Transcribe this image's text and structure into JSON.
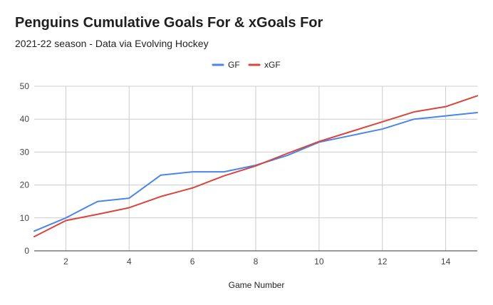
{
  "chart_data": {
    "type": "line",
    "title": "Penguins Cumulative Goals For & xGoals For",
    "subtitle": "2021-22 season - Data via Evolving Hockey",
    "xlabel": "Game Number",
    "ylabel": "",
    "x": [
      1,
      2,
      3,
      4,
      5,
      6,
      7,
      8,
      9,
      10,
      11,
      12,
      13,
      14,
      15
    ],
    "xlim": [
      1,
      15
    ],
    "ylim": [
      0,
      50
    ],
    "x_ticks": [
      2,
      4,
      6,
      8,
      10,
      12,
      14
    ],
    "y_ticks": [
      0,
      10,
      20,
      30,
      40,
      50
    ],
    "grid": true,
    "legend_position": "top",
    "series": [
      {
        "name": "GF",
        "color": "#4a86e8",
        "values": [
          6,
          10,
          15,
          16,
          23,
          24,
          24,
          26,
          29,
          33,
          35,
          37,
          40,
          41,
          42
        ]
      },
      {
        "name": "xGF",
        "color": "#d9453d",
        "values": [
          4.3,
          9.2,
          11.1,
          13.1,
          16.5,
          19.1,
          22.8,
          25.8,
          29.6,
          33.2,
          36.2,
          39.2,
          42.2,
          43.8,
          47.1
        ]
      }
    ]
  }
}
